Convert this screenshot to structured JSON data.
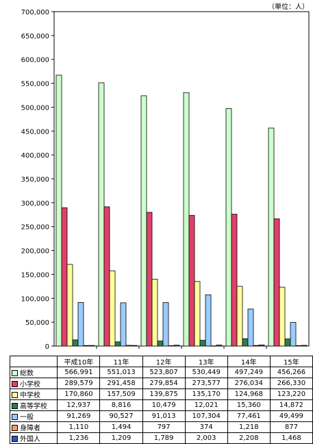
{
  "unit_label": "（単位：人）",
  "chart_data": {
    "type": "bar",
    "categories": [
      "平成10年",
      "11年",
      "12年",
      "13年",
      "14年",
      "15年"
    ],
    "ylim": [
      0,
      700000
    ],
    "yticks": [
      "0",
      "50,000",
      "100,000",
      "150,000",
      "200,000",
      "250,000",
      "300,000",
      "350,000",
      "400,000",
      "450,000",
      "500,000",
      "550,000",
      "600,000",
      "650,000",
      "700,000"
    ],
    "grid": false,
    "legend": "table-below",
    "series": [
      {
        "name": "総数",
        "color": "#ccffcc",
        "values": [
          566991,
          551013,
          523807,
          530449,
          497249,
          456266
        ],
        "labels": [
          "566,991",
          "551,013",
          "523,807",
          "530,449",
          "497,249",
          "456,266"
        ]
      },
      {
        "name": "小学校",
        "color": "#e0406a",
        "values": [
          289579,
          291458,
          279854,
          273577,
          276034,
          266330
        ],
        "labels": [
          "289,579",
          "291,458",
          "279,854",
          "273,577",
          "276,034",
          "266,330"
        ]
      },
      {
        "name": "中学校",
        "color": "#ffff99",
        "values": [
          170860,
          157509,
          139875,
          135170,
          124968,
          123220
        ],
        "labels": [
          "170,860",
          "157,509",
          "139,875",
          "135,170",
          "124,968",
          "123,220"
        ]
      },
      {
        "name": "高等学校",
        "color": "#2e7d52",
        "values": [
          12937,
          8816,
          10479,
          12021,
          15360,
          14872
        ],
        "labels": [
          "12,937",
          "8,816",
          "10,479",
          "12,021",
          "15,360",
          "14,872"
        ]
      },
      {
        "name": "一般",
        "color": "#99ccff",
        "values": [
          91269,
          90527,
          91013,
          107304,
          77461,
          49499
        ],
        "labels": [
          "91,269",
          "90,527",
          "91,013",
          "107,304",
          "77,461",
          "49,499"
        ]
      },
      {
        "name": "身障者",
        "color": "#ff9966",
        "values": [
          1110,
          1494,
          797,
          374,
          1218,
          877
        ],
        "labels": [
          "1,110",
          "1,494",
          "797",
          "374",
          "1,218",
          "877"
        ]
      },
      {
        "name": "外国人",
        "color": "#3355bb",
        "values": [
          1236,
          1209,
          1789,
          2003,
          2208,
          1468
        ],
        "labels": [
          "1,236",
          "1,209",
          "1,789",
          "2,003",
          "2,208",
          "1,468"
        ]
      }
    ]
  }
}
